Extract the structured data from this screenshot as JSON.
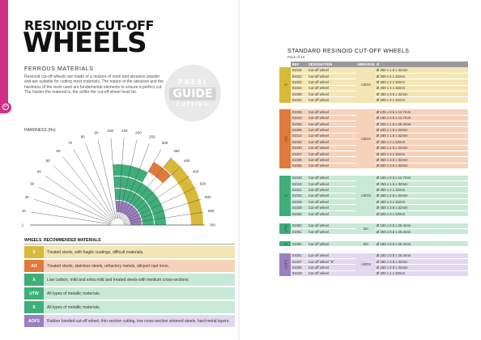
{
  "left": {
    "title_line1": "RESINOID CUT-OFF",
    "title_line2": "WHEELS",
    "subtitle": "FERROUS MATERIALS",
    "paragraph": "Resinoid cut-off wheels are made of a mixture of resin and abrasive powder and are suitable for cutting most materials. The nature of the abrasive and the hardness of the resin used are fundamental elements to ensure a perfect cut. The harder the material is, the softer the cut-off wheel must be.",
    "stamp": {
      "top": "PRESI",
      "middle": "GUIDE",
      "bottom": "CUTTING"
    },
    "hardness_label": "HARDNESS (Hv)",
    "hardness_ticks": [
      "1",
      "10",
      "20",
      "30",
      "40",
      "50",
      "60",
      "70",
      "80",
      "90",
      "100",
      "150",
      "200",
      "250",
      "300",
      "350",
      "400",
      "450",
      "500",
      "600",
      "650",
      "700"
    ],
    "legend_header": {
      "code": "WHEELS",
      "desc": "RECOMMENDED MATERIALS"
    },
    "legend": [
      {
        "code": "S",
        "color": "#d9b93a",
        "bg": "#f3e6b4",
        "desc": "Treated steels, with fragile coatings, difficult materials."
      },
      {
        "code": "AO",
        "color": "#e07a3c",
        "bg": "#f7d2bb",
        "desc": "Treated steels, stainless steels, refractory metals, alloyed cast irons."
      },
      {
        "code": "A",
        "color": "#3fae7a",
        "bg": "#c8e9d7",
        "desc": "Low carbon, mild and extra mild and treated steels with medium cross-sections."
      },
      {
        "code": "UTW",
        "color": "#3fae7a",
        "bg": "#c8e9d7",
        "desc": "All types of metallic materials."
      },
      {
        "code": "S",
        "color": "#3fae7a",
        "bg": "#c8e9d7",
        "desc": "All types of metallic materials."
      },
      {
        "code": "AOFS",
        "color": "#9b7fc0",
        "bg": "#e2d8ef",
        "desc": "Rubber bonded cut-off wheel, thin section cutting, low cross-section sintered steels, hard metal layers."
      }
    ]
  },
  "right": {
    "title": "STANDARD RESINOID CUT-OFF WHEELS",
    "pack": "Pack of 10",
    "headers": [
      "REF",
      "DESIGNATION",
      "ABRASIVE",
      "Ø"
    ],
    "groups": [
      {
        "code": "S",
        "color": "#d9b93a",
        "bg": "#f3e6b4",
        "abrasive": "Al2O3",
        "rows": [
          [
            "01016",
            "Cut-off wheel",
            "Ø 250 x 1.6 x 32mm"
          ],
          [
            "01022",
            "Cut-off wheel",
            "Ø 300 x 2 x 32mm"
          ],
          [
            "01032",
            "Cut-off wheel",
            "Ø 350 x 2 x 32mm"
          ],
          [
            "01034",
            "Cut-off wheel",
            "Ø 400 x 3 x 32mm"
          ],
          [
            "01039",
            "Cut-off wheel",
            "Ø 450 x 3.5 x 32mm"
          ],
          [
            "01044",
            "Cut-off wheel",
            "Ø 500 x 3 x 32mm"
          ]
        ]
      },
      {
        "code": "AO",
        "color": "#e07a3c",
        "bg": "#f7d2bb",
        "abrasive": "Al2O3",
        "rows": [
          [
            "01046",
            "Cut-off wheel",
            "Ø 125 x 0.6 x 12.7mm"
          ],
          [
            "01043",
            "Cut-off wheel",
            "Ø 150 x 0.5 x 12.7mm"
          ],
          [
            "01002",
            "Cut-off wheel",
            "Ø 200 x 1.6 x 25.4mm"
          ],
          [
            "01008",
            "Cut-off wheel",
            "Ø 230 x 1.6 x 22mm"
          ],
          [
            "01014",
            "Cut-off wheel",
            "Ø 250 x 1.6 x 32mm"
          ],
          [
            "01020",
            "Cut-off wheel",
            "Ø 300 x 2 x 32mm"
          ],
          [
            "01030",
            "Cut-off wheel",
            "Ø 350 x 2.5 x 32mm"
          ],
          [
            "01027",
            "Cut-off wheel",
            "Ø 400 x 3 x 32mm"
          ],
          [
            "01036",
            "Cut-off wheel",
            "Ø 450 x 3.5 x 32mm"
          ],
          [
            "01065",
            "Cut-off wheel",
            "Ø 500 x 3.5 x 32mm"
          ]
        ]
      },
      {
        "code": "A",
        "color": "#3fae7a",
        "bg": "#c8e9d7",
        "abrasive": "Al2O3",
        "rows": [
          [
            "01040",
            "Cut-off wheel",
            "Ø 100 x 0.3 x 12.7mm"
          ],
          [
            "01016",
            "Cut-off wheel",
            "Ø 250 x 1.6 x 32mm"
          ],
          [
            "01021",
            "Cut-off wheel",
            "Ø 300 x 2 x 32mm"
          ],
          [
            "01033",
            "Cut-off wheel",
            "Ø 350 x 2.5 x 32mm"
          ],
          [
            "01029",
            "Cut-off wheel",
            "Ø 400 x 3 x 32mm"
          ],
          [
            "01038",
            "Cut-off wheel",
            "Ø 450 x 3.5 x 32mm"
          ],
          [
            "01062",
            "Cut-off wheel",
            "Ø 500 x 3 x 32mm"
          ]
        ]
      },
      {
        "code": "UTW",
        "color": "#3fae7a",
        "bg": "#c8e9d7",
        "abrasive": "SiC",
        "rows": [
          [
            "01050",
            "Cut-off wheel",
            "Ø 180 x 0.5 x 25.4mm"
          ],
          [
            "01051",
            "Cut-off wheel",
            "Ø 200 x 0.5 x 25.4mm"
          ]
        ]
      },
      {
        "code": "S",
        "color": "#3fae7a",
        "bg": "#c8e9d7",
        "abrasive": "SiC",
        "rows": [
          [
            "01060",
            "Cut-off wheel",
            "Ø 180 x 0.5 x 25.4mm"
          ]
        ]
      },
      {
        "code": "AOFS",
        "color": "#9b7fc0",
        "bg": "#e2d8ef",
        "abrasive": "Al2O3",
        "rows": [
          [
            "01001",
            "Cut-off wheel",
            "Ø 200 x 0.8 x 25.4mm"
          ],
          [
            "01007",
            "Cut-off wheel \"S\"",
            "Ø 250 x 0.8 x 32mm"
          ],
          [
            "01009",
            "Cut-off wheel",
            "Ø 250 x 0.8 x 32mm"
          ],
          [
            "01019",
            "Cut-off wheel",
            "Ø 300 x 1 x 32mm"
          ]
        ]
      }
    ]
  }
}
